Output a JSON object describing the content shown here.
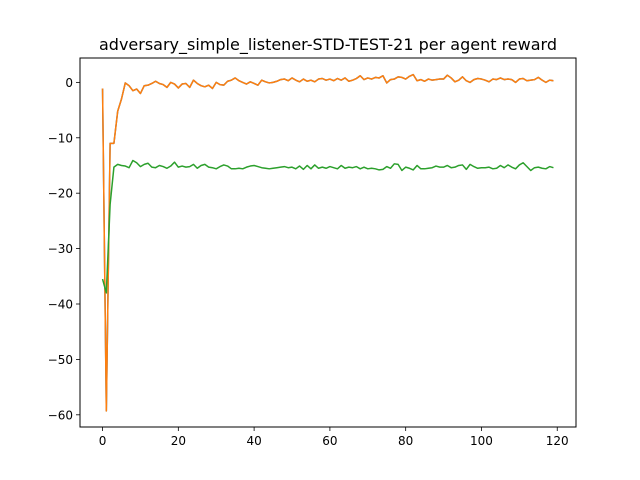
{
  "chart_data": {
    "type": "line",
    "title": "adversary_simple_listener-STD-TEST-21 per agent reward",
    "xlabel": "",
    "ylabel": "",
    "xlim": [
      -5.95,
      124.95
    ],
    "ylim": [
      -62.2,
      4.4
    ],
    "xticks": [
      0,
      20,
      40,
      60,
      80,
      100,
      120
    ],
    "yticks": [
      -60,
      -50,
      -40,
      -30,
      -20,
      -10,
      0
    ],
    "grid": false,
    "legend": "none",
    "series": [
      {
        "color": "#1f77b4",
        "x": [
          0,
          1,
          2,
          3,
          4,
          5,
          6,
          7,
          8,
          9,
          10,
          11,
          12,
          13,
          14,
          15,
          16,
          17,
          18,
          19,
          20,
          21,
          22,
          23,
          24,
          25,
          26,
          27,
          28,
          29,
          30,
          31,
          32,
          33,
          34,
          35,
          36,
          37,
          38,
          39,
          40,
          41,
          42,
          43,
          44,
          45,
          46,
          47,
          48,
          49,
          50,
          51,
          52,
          53,
          54,
          55,
          56,
          57,
          58,
          59,
          60,
          61,
          62,
          63,
          64,
          65,
          66,
          67,
          68,
          69,
          70,
          71,
          72,
          73,
          74,
          75,
          76,
          77,
          78,
          79,
          80,
          81,
          82,
          83,
          84,
          85,
          86,
          87,
          88,
          89,
          90,
          91,
          92,
          93,
          94,
          95,
          96,
          97,
          98,
          99,
          100,
          101,
          102,
          103,
          104,
          105,
          106,
          107,
          108,
          109,
          110,
          111,
          112,
          113,
          114,
          115,
          116,
          117,
          118,
          119
        ],
        "values": [
          -1.1,
          -59.3,
          -11.0,
          -11.0,
          -5.2,
          -3.0,
          -0.1,
          -0.6,
          -1.5,
          -1.2,
          -2.0,
          -0.6,
          -0.5,
          -0.2,
          0.2,
          -0.2,
          -0.4,
          -0.9,
          0.0,
          -0.3,
          -1.0,
          -0.3,
          -0.2,
          -0.9,
          0.4,
          -0.2,
          -0.6,
          -0.8,
          -0.5,
          -1.1,
          0.0,
          -0.4,
          -0.5,
          0.2,
          0.4,
          0.8,
          0.3,
          0.0,
          -0.3,
          0.1,
          -0.2,
          -0.5,
          0.4,
          0.1,
          -0.1,
          0.0,
          0.2,
          0.5,
          0.6,
          0.3,
          0.8,
          0.4,
          0.1,
          0.6,
          0.2,
          0.4,
          0.1,
          0.6,
          0.7,
          0.4,
          0.6,
          0.3,
          0.7,
          0.4,
          0.8,
          0.2,
          0.4,
          0.7,
          1.2,
          0.5,
          0.8,
          0.6,
          0.9,
          0.8,
          1.2,
          -0.1,
          0.5,
          0.6,
          1.0,
          0.9,
          0.6,
          1.1,
          1.4,
          0.3,
          0.5,
          0.2,
          0.6,
          0.4,
          0.5,
          0.6,
          0.6,
          1.3,
          0.8,
          0.1,
          0.4,
          1.0,
          0.3,
          0.0,
          0.5,
          0.7,
          0.6,
          0.4,
          0.1,
          0.6,
          0.5,
          0.8,
          0.5,
          0.6,
          0.5,
          0.0,
          0.6,
          0.7,
          0.3,
          0.4,
          0.5,
          0.9,
          0.4,
          0.0,
          0.4,
          0.3
        ]
      },
      {
        "color": "#ff7f0e",
        "x": [
          0,
          1,
          2,
          3,
          4,
          5,
          6,
          7,
          8,
          9,
          10,
          11,
          12,
          13,
          14,
          15,
          16,
          17,
          18,
          19,
          20,
          21,
          22,
          23,
          24,
          25,
          26,
          27,
          28,
          29,
          30,
          31,
          32,
          33,
          34,
          35,
          36,
          37,
          38,
          39,
          40,
          41,
          42,
          43,
          44,
          45,
          46,
          47,
          48,
          49,
          50,
          51,
          52,
          53,
          54,
          55,
          56,
          57,
          58,
          59,
          60,
          61,
          62,
          63,
          64,
          65,
          66,
          67,
          68,
          69,
          70,
          71,
          72,
          73,
          74,
          75,
          76,
          77,
          78,
          79,
          80,
          81,
          82,
          83,
          84,
          85,
          86,
          87,
          88,
          89,
          90,
          91,
          92,
          93,
          94,
          95,
          96,
          97,
          98,
          99,
          100,
          101,
          102,
          103,
          104,
          105,
          106,
          107,
          108,
          109,
          110,
          111,
          112,
          113,
          114,
          115,
          116,
          117,
          118,
          119
        ],
        "values": [
          -1.1,
          -59.3,
          -11.0,
          -11.0,
          -5.2,
          -3.0,
          -0.1,
          -0.6,
          -1.5,
          -1.2,
          -2.0,
          -0.6,
          -0.5,
          -0.2,
          0.2,
          -0.2,
          -0.4,
          -0.9,
          0.0,
          -0.3,
          -1.0,
          -0.3,
          -0.2,
          -0.9,
          0.4,
          -0.2,
          -0.6,
          -0.8,
          -0.5,
          -1.1,
          0.0,
          -0.4,
          -0.5,
          0.2,
          0.4,
          0.8,
          0.3,
          0.0,
          -0.3,
          0.1,
          -0.2,
          -0.5,
          0.4,
          0.1,
          -0.1,
          0.0,
          0.2,
          0.5,
          0.6,
          0.3,
          0.8,
          0.4,
          0.1,
          0.6,
          0.2,
          0.4,
          0.1,
          0.6,
          0.7,
          0.4,
          0.6,
          0.3,
          0.7,
          0.4,
          0.8,
          0.2,
          0.4,
          0.7,
          1.2,
          0.5,
          0.8,
          0.6,
          0.9,
          0.8,
          1.2,
          -0.1,
          0.5,
          0.6,
          1.0,
          0.9,
          0.6,
          1.1,
          1.4,
          0.3,
          0.5,
          0.2,
          0.6,
          0.4,
          0.5,
          0.6,
          0.6,
          1.3,
          0.8,
          0.1,
          0.4,
          1.0,
          0.3,
          0.0,
          0.5,
          0.7,
          0.6,
          0.4,
          0.1,
          0.6,
          0.5,
          0.8,
          0.5,
          0.6,
          0.5,
          0.0,
          0.6,
          0.7,
          0.3,
          0.4,
          0.5,
          0.9,
          0.4,
          0.0,
          0.4,
          0.3
        ]
      },
      {
        "color": "#2ca02c",
        "x": [
          0,
          1,
          2,
          3,
          4,
          5,
          6,
          7,
          8,
          9,
          10,
          11,
          12,
          13,
          14,
          15,
          16,
          17,
          18,
          19,
          20,
          21,
          22,
          23,
          24,
          25,
          26,
          27,
          28,
          29,
          30,
          31,
          32,
          33,
          34,
          35,
          36,
          37,
          38,
          39,
          40,
          41,
          42,
          43,
          44,
          45,
          46,
          47,
          48,
          49,
          50,
          51,
          52,
          53,
          54,
          55,
          56,
          57,
          58,
          59,
          60,
          61,
          62,
          63,
          64,
          65,
          66,
          67,
          68,
          69,
          70,
          71,
          72,
          73,
          74,
          75,
          76,
          77,
          78,
          79,
          80,
          81,
          82,
          83,
          84,
          85,
          86,
          87,
          88,
          89,
          90,
          91,
          92,
          93,
          94,
          95,
          96,
          97,
          98,
          99,
          100,
          101,
          102,
          103,
          104,
          105,
          106,
          107,
          108,
          109,
          110,
          111,
          112,
          113,
          114,
          115,
          116,
          117,
          118,
          119
        ],
        "values": [
          -35.5,
          -38.0,
          -22.0,
          -15.3,
          -14.8,
          -15.0,
          -15.1,
          -15.4,
          -14.1,
          -14.5,
          -15.2,
          -14.8,
          -14.6,
          -15.3,
          -15.4,
          -15.0,
          -15.2,
          -15.5,
          -15.1,
          -14.4,
          -15.3,
          -15.1,
          -15.3,
          -15.2,
          -14.8,
          -15.5,
          -15.0,
          -14.8,
          -15.3,
          -15.4,
          -15.6,
          -15.2,
          -14.9,
          -15.1,
          -15.6,
          -15.6,
          -15.5,
          -15.6,
          -15.3,
          -15.1,
          -15.0,
          -15.2,
          -15.4,
          -15.5,
          -15.6,
          -15.5,
          -15.4,
          -15.3,
          -15.2,
          -15.4,
          -15.3,
          -15.6,
          -15.1,
          -15.7,
          -15.0,
          -15.6,
          -14.9,
          -15.5,
          -15.3,
          -15.5,
          -15.2,
          -15.4,
          -15.6,
          -15.0,
          -15.5,
          -15.3,
          -15.4,
          -15.2,
          -15.6,
          -15.3,
          -15.6,
          -15.5,
          -15.6,
          -15.8,
          -15.7,
          -15.2,
          -15.5,
          -14.7,
          -14.8,
          -15.9,
          -15.3,
          -15.5,
          -15.8,
          -15.0,
          -15.6,
          -15.6,
          -15.5,
          -15.4,
          -15.1,
          -15.3,
          -15.3,
          -15.0,
          -15.4,
          -15.3,
          -15.0,
          -14.9,
          -15.7,
          -14.8,
          -15.2,
          -15.5,
          -15.4,
          -15.4,
          -15.3,
          -15.6,
          -15.5,
          -15.0,
          -15.4,
          -14.9,
          -15.3,
          -15.6,
          -14.9,
          -14.5,
          -15.2,
          -15.9,
          -15.4,
          -15.3,
          -15.5,
          -15.6,
          -15.2,
          -15.4
        ]
      }
    ]
  }
}
